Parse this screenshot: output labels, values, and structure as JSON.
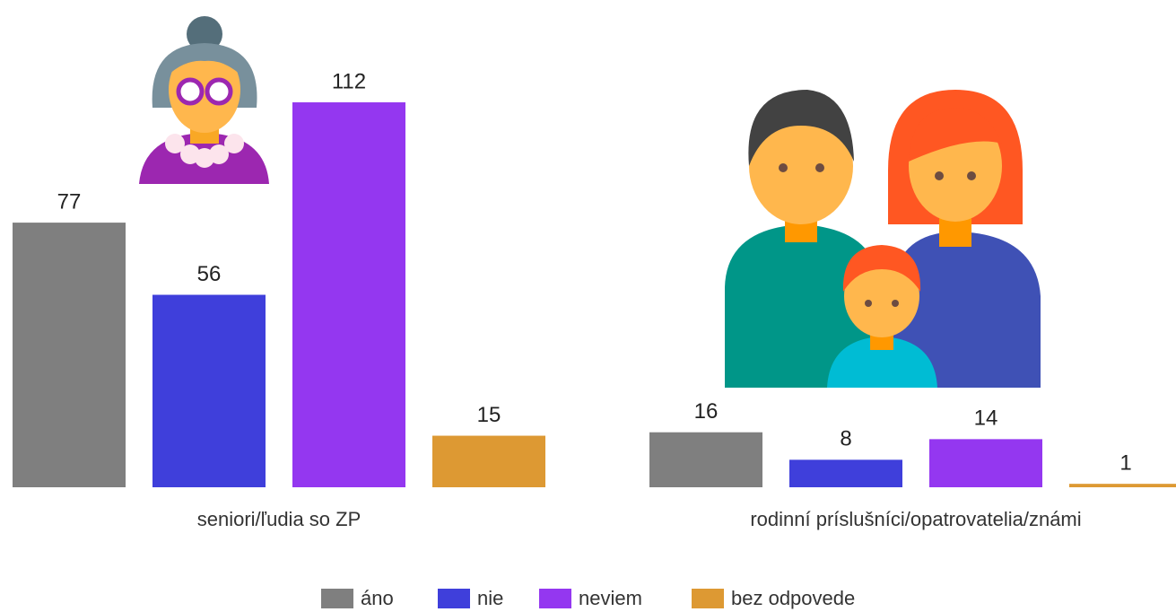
{
  "chart_data": {
    "type": "bar",
    "categories": [
      "seniori/ľudia so ZP",
      "rodinní príslušníci/opatrovatelia/známi"
    ],
    "series": [
      {
        "name": "áno",
        "color": "#7f7f7f",
        "values": [
          77,
          16
        ]
      },
      {
        "name": "nie",
        "color": "#3f3fdb",
        "values": [
          56,
          8
        ]
      },
      {
        "name": "neviem",
        "color": "#9437f0",
        "values": [
          112,
          14
        ]
      },
      {
        "name": "bez odpovede",
        "color": "#dd9933",
        "values": [
          15,
          1
        ]
      }
    ],
    "legend": "bottom"
  }
}
